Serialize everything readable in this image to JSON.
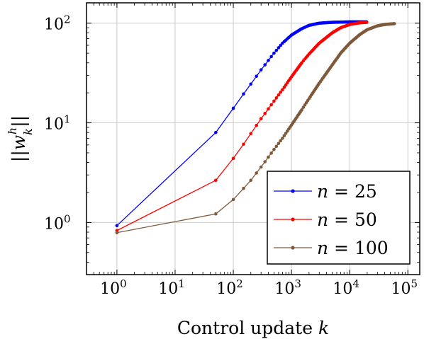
{
  "chart_data": {
    "type": "line",
    "xlabel": "Control update k",
    "ylabel": "||w_k^h||",
    "x_scale": "log",
    "y_scale": "log",
    "xlim": [
      0.3,
      160000
    ],
    "ylim": [
      0.3,
      160
    ],
    "grid": true,
    "legend_position": "lower-right",
    "x_ticks": [
      {
        "base": "10",
        "exp": "0"
      },
      {
        "base": "10",
        "exp": "1"
      },
      {
        "base": "10",
        "exp": "2"
      },
      {
        "base": "10",
        "exp": "3"
      },
      {
        "base": "10",
        "exp": "4"
      },
      {
        "base": "10",
        "exp": "5"
      }
    ],
    "y_ticks": [
      {
        "base": "10",
        "exp": "0"
      },
      {
        "base": "10",
        "exp": "1"
      },
      {
        "base": "10",
        "exp": "2"
      }
    ],
    "series": [
      {
        "name": "n = 25",
        "color": "#0000ff",
        "points": [
          [
            1,
            0.93
          ],
          [
            50,
            8.0
          ],
          [
            100,
            14
          ],
          [
            150,
            19.5
          ],
          [
            200,
            24.5
          ],
          [
            300,
            34
          ],
          [
            500,
            50
          ],
          [
            700,
            63
          ],
          [
            1000,
            76
          ],
          [
            1500,
            88
          ],
          [
            2000,
            95
          ],
          [
            3000,
            100
          ],
          [
            5000,
            102
          ],
          [
            10000,
            103
          ],
          [
            20000,
            103
          ]
        ]
      },
      {
        "name": "n = 50",
        "color": "#ff0000",
        "points": [
          [
            1,
            0.83
          ],
          [
            50,
            2.65
          ],
          [
            100,
            4.4
          ],
          [
            150,
            6.1
          ],
          [
            200,
            7.8
          ],
          [
            300,
            11
          ],
          [
            500,
            16.5
          ],
          [
            700,
            21.5
          ],
          [
            1000,
            29
          ],
          [
            1500,
            40
          ],
          [
            2000,
            49
          ],
          [
            3000,
            63
          ],
          [
            5000,
            80
          ],
          [
            7000,
            90
          ],
          [
            10000,
            97
          ],
          [
            15000,
            101
          ],
          [
            20000,
            102
          ]
        ]
      },
      {
        "name": "n = 100",
        "color": "#7f5a3a",
        "points": [
          [
            1,
            0.79
          ],
          [
            50,
            1.22
          ],
          [
            100,
            1.7
          ],
          [
            150,
            2.2
          ],
          [
            200,
            2.65
          ],
          [
            300,
            3.6
          ],
          [
            500,
            5.4
          ],
          [
            700,
            7.0
          ],
          [
            1000,
            9.5
          ],
          [
            1500,
            13.5
          ],
          [
            2000,
            17.5
          ],
          [
            3000,
            25
          ],
          [
            5000,
            38
          ],
          [
            7000,
            50
          ],
          [
            10000,
            63
          ],
          [
            15000,
            77
          ],
          [
            20000,
            86
          ],
          [
            30000,
            94
          ],
          [
            40000,
            97
          ],
          [
            60000,
            99
          ]
        ]
      }
    ],
    "legend": [
      {
        "var": "n",
        "op": " = ",
        "value": "25"
      },
      {
        "var": "n",
        "op": " = ",
        "value": "50"
      },
      {
        "var": "n",
        "op": " = ",
        "value": "100"
      }
    ]
  }
}
